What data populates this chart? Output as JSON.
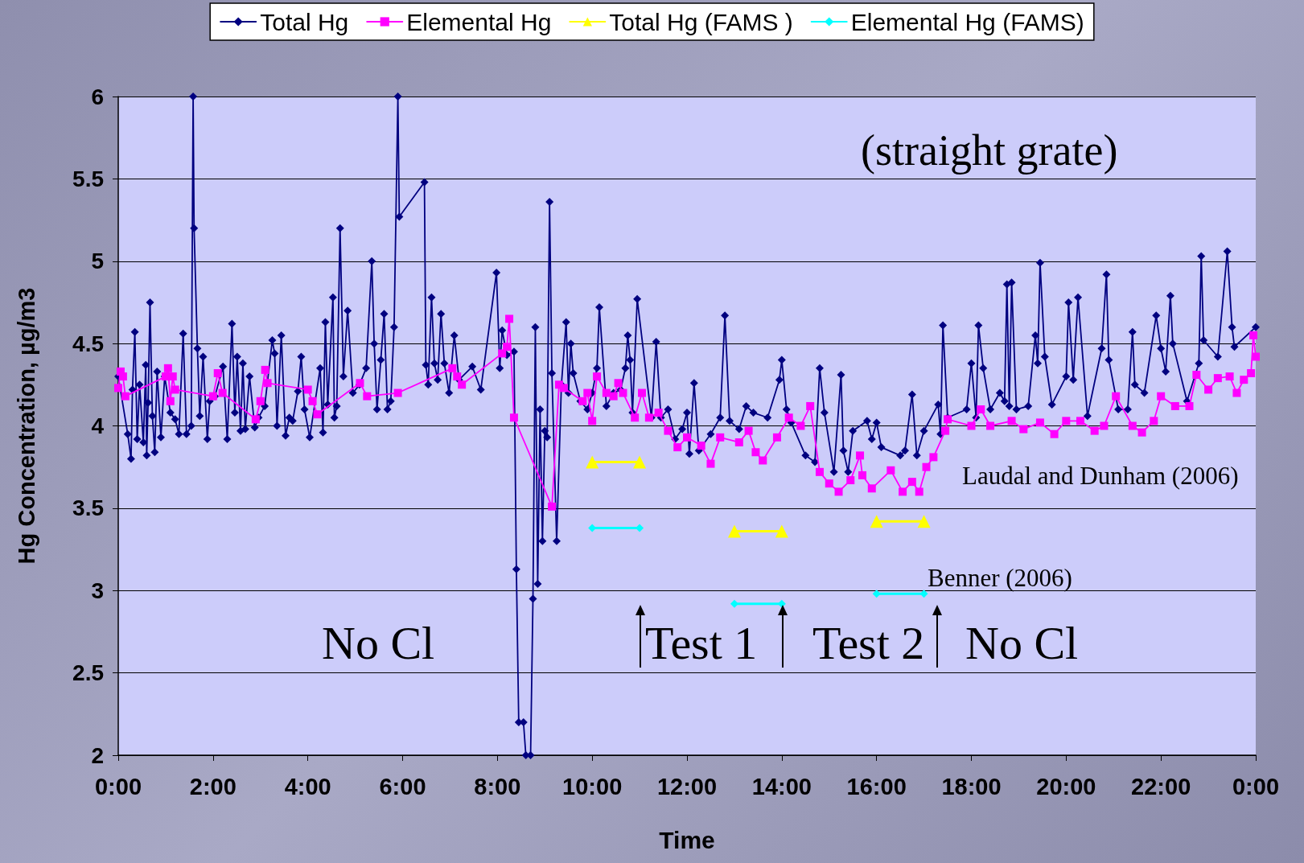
{
  "chart_data": {
    "type": "line",
    "xlabel": "Time",
    "ylabel": "Hg Concentration, µg/m3",
    "xlim": [
      0,
      24
    ],
    "xticks": [
      {
        "value": 0,
        "label": "0:00"
      },
      {
        "value": 2,
        "label": "2:00"
      },
      {
        "value": 4,
        "label": "4:00"
      },
      {
        "value": 6,
        "label": "6:00"
      },
      {
        "value": 8,
        "label": "8:00"
      },
      {
        "value": 10,
        "label": "10:00"
      },
      {
        "value": 12,
        "label": "12:00"
      },
      {
        "value": 14,
        "label": "14:00"
      },
      {
        "value": 16,
        "label": "16:00"
      },
      {
        "value": 18,
        "label": "18:00"
      },
      {
        "value": 20,
        "label": "20:00"
      },
      {
        "value": 22,
        "label": "22:00"
      },
      {
        "value": 24,
        "label": "0:00"
      }
    ],
    "ylim": [
      2,
      6
    ],
    "yticks": [
      2,
      2.5,
      3,
      3.5,
      4,
      4.5,
      5,
      5.5,
      6
    ],
    "grid": "y",
    "legend": "top",
    "annotations": [
      "(straight grate)",
      "Laudal and Dunham (2006)",
      "Benner (2006)",
      "No Cl",
      "Test 1",
      "Test 2",
      "No Cl"
    ],
    "series": [
      {
        "name": "Total Hg",
        "color": "#000080",
        "marker": "diamond",
        "x": [
          0,
          0.2,
          0.27,
          0.3,
          0.35,
          0.4,
          0.45,
          0.53,
          0.58,
          0.6,
          0.63,
          0.67,
          0.72,
          0.77,
          0.82,
          0.9,
          0.98,
          1.1,
          1.2,
          1.28,
          1.37,
          1.44,
          1.54,
          1.58,
          1.6,
          1.67,
          1.72,
          1.79,
          1.88,
          1.93,
          2.04,
          2.21,
          2.3,
          2.4,
          2.46,
          2.51,
          2.58,
          2.63,
          2.68,
          2.77,
          2.88,
          2.96,
          3.09,
          3.25,
          3.3,
          3.35,
          3.44,
          3.53,
          3.61,
          3.68,
          3.79,
          3.86,
          3.93,
          4.04,
          4.26,
          4.32,
          4.37,
          4.42,
          4.53,
          4.56,
          4.61,
          4.68,
          4.75,
          4.84,
          4.95,
          5.09,
          5.23,
          5.35,
          5.4,
          5.46,
          5.54,
          5.61,
          5.68,
          5.75,
          5.82,
          5.9,
          5.93,
          6.46,
          6.49,
          6.54,
          6.61,
          6.67,
          6.74,
          6.81,
          6.88,
          6.98,
          7.09,
          7.19,
          7.47,
          7.65,
          7.98,
          8.05,
          8.1,
          8.2,
          8.35,
          8.4,
          8.45,
          8.55,
          8.6,
          8.7,
          8.75,
          8.8,
          8.85,
          8.9,
          8.95,
          9.0,
          9.05,
          9.1,
          9.15,
          9.25,
          9.35,
          9.45,
          9.5,
          9.55,
          9.6,
          9.75,
          9.9,
          10.0,
          10.1,
          10.15,
          10.3,
          10.45,
          10.6,
          10.7,
          10.75,
          10.8,
          10.85,
          10.95,
          11.25,
          11.35,
          11.45,
          11.6,
          11.75,
          11.9,
          12.0,
          12.05,
          12.15,
          12.25,
          12.5,
          12.7,
          12.8,
          12.9,
          13.1,
          13.25,
          13.4,
          13.7,
          13.95,
          14.0,
          14.1,
          14.2,
          14.5,
          14.7,
          14.8,
          14.9,
          15.1,
          15.25,
          15.3,
          15.4,
          15.5,
          15.8,
          15.9,
          16.0,
          16.1,
          16.5,
          16.6,
          16.75,
          16.85,
          17.0,
          17.3,
          17.35,
          17.4,
          17.5,
          17.9,
          18.0,
          18.1,
          18.15,
          18.25,
          18.4,
          18.6,
          18.7,
          18.75,
          18.8,
          18.85,
          18.95,
          19.2,
          19.35,
          19.4,
          19.45,
          19.55,
          19.7,
          20.0,
          20.05,
          20.15,
          20.25,
          20.45,
          20.75,
          20.85,
          20.9,
          21.1,
          21.3,
          21.4,
          21.45,
          21.65,
          21.9,
          22.0,
          22.1,
          22.2,
          22.25,
          22.55,
          22.8,
          22.85,
          22.9,
          23.2,
          23.4,
          23.5,
          23.55,
          24.0
        ],
        "values": [
          4.3,
          3.95,
          3.8,
          4.22,
          4.57,
          3.92,
          4.25,
          3.9,
          4.37,
          3.82,
          4.14,
          4.75,
          4.06,
          3.84,
          4.33,
          3.93,
          4.3,
          4.08,
          4.04,
          3.95,
          4.56,
          3.95,
          4.0,
          6,
          5.2,
          4.47,
          4.06,
          4.42,
          3.92,
          4.15,
          4.18,
          4.36,
          3.92,
          4.62,
          4.08,
          4.42,
          3.97,
          4.38,
          3.98,
          4.3,
          3.99,
          4.05,
          4.12,
          4.52,
          4.44,
          4.0,
          4.55,
          3.94,
          4.05,
          4.03,
          4.21,
          4.42,
          4.1,
          3.93,
          4.35,
          3.96,
          4.63,
          4.13,
          4.78,
          4.05,
          4.12,
          5.2,
          4.3,
          4.7,
          4.2,
          4.25,
          4.35,
          5.0,
          4.5,
          4.1,
          4.4,
          4.68,
          4.1,
          4.15,
          4.6,
          6,
          5.27,
          5.48,
          4.37,
          4.25,
          4.78,
          4.38,
          4.28,
          4.68,
          4.38,
          4.2,
          4.55,
          4.28,
          4.36,
          4.22,
          4.93,
          4.35,
          4.58,
          4.43,
          4.45,
          3.13,
          2.2,
          2.2,
          2.0,
          2.0,
          2.95,
          4.6,
          3.04,
          4.1,
          3.3,
          3.97,
          3.93,
          5.36,
          4.32,
          3.3,
          4.25,
          4.63,
          4.2,
          4.5,
          4.32,
          4.15,
          4.1,
          4.2,
          4.35,
          4.72,
          4.12,
          4.2,
          4.22,
          4.35,
          4.55,
          4.4,
          4.08,
          4.77,
          4.05,
          4.51,
          4.05,
          4.1,
          3.92,
          3.98,
          4.08,
          3.83,
          4.26,
          3.85,
          3.95,
          4.05,
          4.67,
          4.03,
          3.98,
          4.12,
          4.08,
          4.05,
          4.28,
          4.4,
          4.1,
          4.02,
          3.82,
          3.78,
          4.35,
          4.08,
          3.72,
          4.31,
          3.85,
          3.72,
          3.97,
          4.03,
          3.92,
          4.02,
          3.87,
          3.82,
          3.85,
          4.19,
          3.82,
          3.97,
          4.13,
          3.95,
          4.61,
          4.05,
          4.1,
          4.38,
          4.05,
          4.61,
          4.35,
          4.1,
          4.2,
          4.15,
          4.86,
          4.12,
          4.87,
          4.1,
          4.12,
          4.55,
          4.38,
          4.99,
          4.42,
          4.13,
          4.3,
          4.75,
          4.28,
          4.78,
          4.06,
          4.47,
          4.92,
          4.4,
          4.1,
          4.1,
          4.57,
          4.25,
          4.2,
          4.67,
          4.47,
          4.33,
          4.79,
          4.5,
          4.15,
          4.38,
          5.03,
          4.52,
          4.42,
          5.06,
          4.6,
          4.48,
          4.6
        ]
      },
      {
        "name": "Elemental Hg",
        "color": "#ff00ff",
        "marker": "square",
        "x": [
          0,
          0.05,
          0.1,
          0.15,
          1.0,
          1.05,
          1.1,
          1.15,
          1.2,
          2.0,
          2.1,
          2.2,
          2.9,
          3.0,
          3.1,
          3.15,
          4.0,
          4.1,
          4.2,
          5.1,
          5.25,
          5.9,
          7.05,
          7.15,
          7.25,
          8.1,
          8.2,
          8.25,
          8.35,
          9.15,
          9.3,
          9.4,
          9.8,
          9.9,
          10.0,
          10.1,
          10.3,
          10.45,
          10.55,
          10.65,
          10.9,
          11.05,
          11.2,
          11.4,
          11.6,
          11.8,
          12.0,
          12.3,
          12.5,
          12.7,
          13.1,
          13.3,
          13.45,
          13.6,
          13.9,
          14.15,
          14.4,
          14.6,
          14.8,
          15.0,
          15.2,
          15.45,
          15.65,
          15.7,
          15.9,
          16.3,
          16.55,
          16.75,
          16.9,
          17.05,
          17.2,
          17.45,
          17.5,
          18.0,
          18.2,
          18.4,
          18.85,
          19.1,
          19.45,
          19.75,
          20.0,
          20.3,
          20.6,
          20.8,
          21.05,
          21.4,
          21.6,
          21.85,
          22.0,
          22.3,
          22.6,
          22.75,
          23.0,
          23.2,
          23.45,
          23.6,
          23.75,
          23.9,
          23.95,
          24.0
        ],
        "values": [
          4.23,
          4.33,
          4.3,
          4.18,
          4.3,
          4.35,
          4.15,
          4.3,
          4.22,
          4.18,
          4.32,
          4.2,
          4.04,
          4.15,
          4.34,
          4.26,
          4.22,
          4.15,
          4.07,
          4.26,
          4.18,
          4.2,
          4.35,
          4.3,
          4.25,
          4.44,
          4.48,
          4.65,
          4.05,
          3.51,
          4.25,
          4.23,
          4.15,
          4.2,
          4.03,
          4.3,
          4.2,
          4.18,
          4.26,
          4.2,
          4.05,
          4.2,
          4.05,
          4.08,
          3.97,
          3.87,
          3.93,
          3.88,
          3.77,
          3.93,
          3.9,
          3.97,
          3.84,
          3.79,
          3.93,
          4.05,
          4.0,
          4.12,
          3.72,
          3.65,
          3.6,
          3.67,
          3.82,
          3.7,
          3.62,
          3.73,
          3.6,
          3.66,
          3.6,
          3.75,
          3.81,
          3.97,
          4.04,
          4.0,
          4.1,
          4.0,
          4.03,
          3.98,
          4.02,
          3.95,
          4.03,
          4.03,
          3.97,
          4.0,
          4.18,
          4.0,
          3.96,
          4.03,
          4.18,
          4.12,
          4.12,
          4.31,
          4.22,
          4.29,
          4.3,
          4.2,
          4.28,
          4.32,
          4.55,
          4.42
        ]
      },
      {
        "name": "Total Hg (FAMS )",
        "color": "#ffff00",
        "marker": "triangle",
        "x": [
          10,
          11,
          12,
          13,
          14,
          15,
          16,
          17
        ],
        "values": [
          3.78,
          3.78,
          null,
          3.36,
          3.36,
          null,
          3.42,
          3.42
        ]
      },
      {
        "name": "Elemental Hg (FAMS)",
        "color": "#00ffff",
        "marker": "diamond",
        "x": [
          10,
          11,
          12,
          13,
          14,
          15,
          16,
          17
        ],
        "values": [
          3.38,
          3.38,
          null,
          2.92,
          2.92,
          null,
          2.98,
          2.98
        ]
      }
    ]
  }
}
